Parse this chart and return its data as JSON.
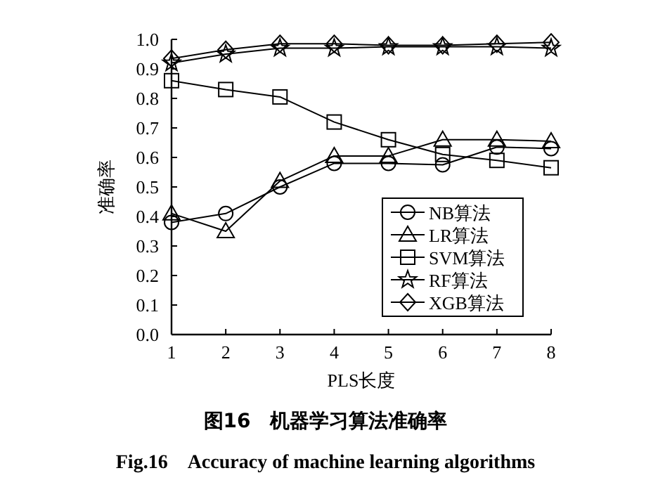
{
  "chart_data": {
    "type": "line",
    "title": "图16　机器学习算法准确率",
    "subtitle": "Fig.16　Accuracy of machine learning algorithms",
    "xlabel": "PLS长度",
    "ylabel": "准确率",
    "x": [
      1,
      2,
      3,
      4,
      5,
      6,
      7,
      8
    ],
    "xlim": [
      1,
      8
    ],
    "xticks": [
      1,
      2,
      3,
      4,
      5,
      6,
      7,
      8
    ],
    "ylim": [
      0,
      1
    ],
    "yticks": [
      {
        "value": 0,
        "label": "0.0"
      },
      0.1,
      0.2,
      0.3,
      0.4,
      0.5,
      0.6,
      0.7,
      0.8,
      0.9,
      {
        "value": 1,
        "label": "1.0"
      }
    ],
    "grid": false,
    "legend": "bottom right",
    "line_style": "solid",
    "series": [
      {
        "name": "NB算法",
        "color": "#000000",
        "marker": "circle",
        "values": [
          0.38,
          0.41,
          0.5,
          0.58,
          0.58,
          0.575,
          0.635,
          0.63
        ]
      },
      {
        "name": "LR算法",
        "color": "#000000",
        "marker": "triangle",
        "values": [
          0.41,
          0.35,
          0.52,
          0.605,
          0.605,
          0.66,
          0.66,
          0.655
        ]
      },
      {
        "name": "SVM算法",
        "color": "#000000",
        "marker": "square",
        "values": [
          0.86,
          0.83,
          0.805,
          0.72,
          0.66,
          0.61,
          0.59,
          0.565
        ]
      },
      {
        "name": "RF算法",
        "color": "#000000",
        "marker": "star",
        "values": [
          0.92,
          0.95,
          0.97,
          0.97,
          0.975,
          0.975,
          0.975,
          0.97
        ]
      },
      {
        "name": "XGB算法",
        "color": "#000000",
        "marker": "diamond",
        "values": [
          0.935,
          0.965,
          0.985,
          0.985,
          0.98,
          0.98,
          0.985,
          0.99
        ]
      }
    ]
  }
}
